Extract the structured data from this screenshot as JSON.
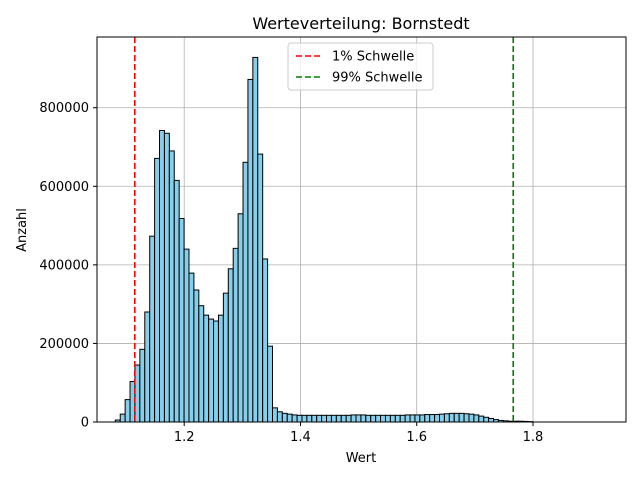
{
  "chart_data": {
    "type": "bar",
    "title": "Werteverteilung: Bornstedt",
    "xlabel": "Wert",
    "ylabel": "Anzahl",
    "xlim": [
      1.05,
      1.96
    ],
    "ylim": [
      0,
      980000
    ],
    "grid": true,
    "x_ticks": [
      1.2,
      1.4,
      1.6,
      1.8
    ],
    "x_tick_labels": [
      "1.2",
      "1.4",
      "1.6",
      "1.8"
    ],
    "y_ticks": [
      0,
      200000,
      400000,
      600000,
      800000
    ],
    "y_tick_labels": [
      "0",
      "200000",
      "400000",
      "600000",
      "800000"
    ],
    "bar_color": "#87ceeb",
    "bar_edge_color": "#000000",
    "bins": {
      "start": 1.0815,
      "width": 0.00845,
      "counts": [
        5000,
        20000,
        57000,
        103000,
        145000,
        185000,
        280000,
        473000,
        671000,
        742000,
        735000,
        690000,
        615000,
        518000,
        440000,
        379000,
        336000,
        296000,
        272000,
        262000,
        257000,
        272000,
        328000,
        390000,
        442000,
        530000,
        661000,
        872000,
        928000,
        682000,
        415000,
        193000,
        36000,
        26000,
        22000,
        20000,
        18000,
        17000,
        17000,
        17000,
        17000,
        17000,
        17000,
        17000,
        17000,
        17000,
        17000,
        17000,
        18000,
        18000,
        18000,
        17000,
        17000,
        17000,
        17000,
        17000,
        17000,
        17000,
        17000,
        18000,
        18000,
        18000,
        18000,
        19000,
        19000,
        19000,
        20000,
        21000,
        22000,
        22000,
        22000,
        21000,
        20000,
        18000,
        15000,
        12000,
        9000,
        6000,
        4000,
        3000,
        2000,
        2000,
        2000,
        1500,
        1000
      ]
    },
    "vlines": [
      {
        "x": 1.115,
        "color": "#ff0000",
        "style": "dashed",
        "label": "1% Schwelle"
      },
      {
        "x": 1.766,
        "color": "#008000",
        "style": "dashed",
        "label": "99% Schwelle"
      }
    ],
    "legend_position": "top-center"
  }
}
